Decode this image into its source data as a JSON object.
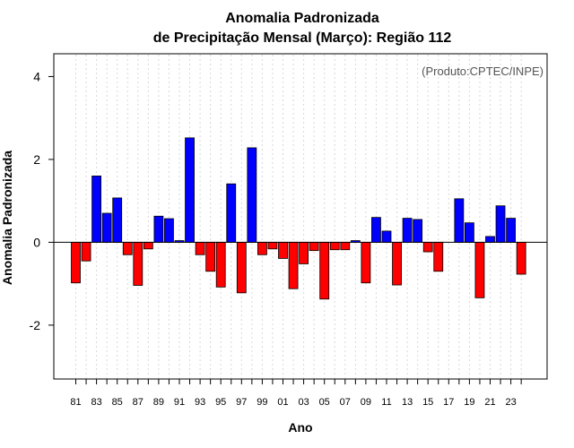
{
  "chart_data": {
    "type": "bar",
    "title": "Anomalia Padronizada",
    "subtitle": "de Precipitação Mensal (Março): Região 112",
    "xlabel": "Ano",
    "ylabel": "Anomalia Padronizada",
    "source_note": "(Produto:CPTEC/INPE)",
    "ylim": [
      -3.3,
      4.55
    ],
    "yticks": [
      "-2",
      "0",
      "2",
      "4"
    ],
    "ytick_values": [
      -2,
      0,
      2,
      4
    ],
    "grid": "vertical dotted",
    "positive_color": "#0000ff",
    "negative_color": "#ff0000",
    "categories": [
      "81",
      "82",
      "83",
      "84",
      "85",
      "86",
      "87",
      "88",
      "89",
      "90",
      "91",
      "92",
      "93",
      "94",
      "95",
      "96",
      "97",
      "98",
      "99",
      "00",
      "01",
      "02",
      "03",
      "04",
      "05",
      "06",
      "07",
      "08",
      "09",
      "10",
      "11",
      "12",
      "13",
      "14",
      "15",
      "16",
      "17",
      "18",
      "19",
      "20",
      "21",
      "22",
      "23",
      "24"
    ],
    "values": [
      -0.98,
      -0.45,
      1.6,
      0.7,
      1.07,
      -0.3,
      -1.04,
      -0.16,
      0.63,
      0.57,
      0.04,
      2.52,
      -0.3,
      -0.7,
      -1.08,
      1.41,
      -1.22,
      2.28,
      -0.3,
      -0.16,
      -0.39,
      -1.12,
      -0.52,
      -0.2,
      -1.37,
      -0.18,
      -0.18,
      0.04,
      -0.98,
      0.6,
      0.27,
      -1.03,
      0.58,
      0.55,
      -0.23,
      -0.7,
      0.0,
      1.05,
      0.47,
      -1.34,
      0.14,
      0.88,
      0.58,
      -0.77
    ],
    "xtick_labels": [
      "81",
      "83",
      "85",
      "87",
      "89",
      "91",
      "93",
      "95",
      "97",
      "99",
      "01",
      "03",
      "05",
      "07",
      "09",
      "11",
      "13",
      "15",
      "17",
      "19",
      "21",
      "23"
    ]
  }
}
